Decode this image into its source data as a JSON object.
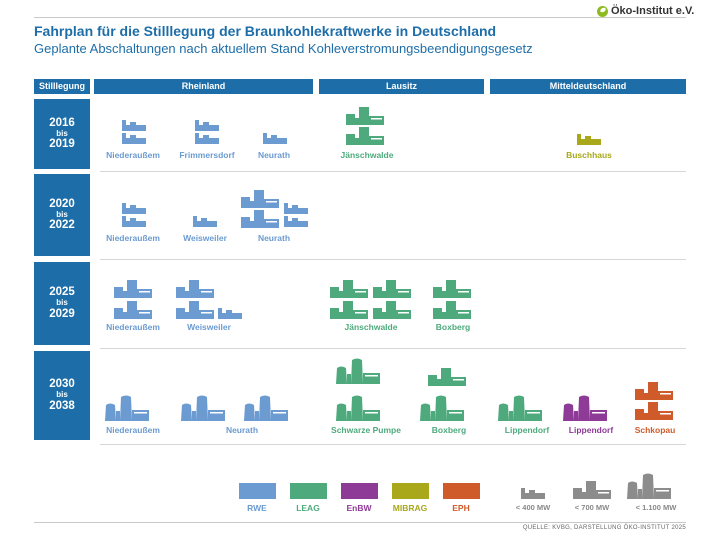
{
  "header": {
    "title": "Fahrplan für die Stilllegung der Braunkohlekraftwerke in Deutschland",
    "subtitle": "Geplante Abschaltungen nach aktuellem Stand Kohleverstromungsbeendigungsgesetz",
    "logo_text": "Öko-Institut e.V."
  },
  "columns": {
    "stilllegung": "Stilllegung",
    "rheinland": "Rheinland",
    "lausitz": "Lausitz",
    "mitteldeutschland": "Mitteldeutschland"
  },
  "periods": [
    {
      "start": "2016",
      "bis": "bis",
      "end": "2019"
    },
    {
      "start": "2020",
      "bis": "bis",
      "end": "2022"
    },
    {
      "start": "2025",
      "bis": "bis",
      "end": "2029"
    },
    {
      "start": "2030",
      "bis": "bis",
      "end": "2038"
    }
  ],
  "plants": {
    "p1_niederaussem": "Niederaußem",
    "p1_frimmersdorf": "Frimmersdorf",
    "p1_neurath": "Neurath",
    "p1_jaenschwalde": "Jänschwalde",
    "p1_buschhaus": "Buschhaus",
    "p2_niederaussem": "Niederaußem",
    "p2_weisweiler": "Weisweiler",
    "p2_neurath": "Neurath",
    "p3_niederaussem": "Niederaußem",
    "p3_weisweiler": "Weisweiler",
    "p3_jaenschwalde": "Jänschwalde",
    "p3_boxberg": "Boxberg",
    "p4_niederaussem": "Niederaußem",
    "p4_neurath": "Neurath",
    "p4_schwarzepumpe": "Schwarze Pumpe",
    "p4_boxberg": "Boxberg",
    "p4_lippendorf_leag": "Lippendorf",
    "p4_lippendorf_enbw": "Lippendorf",
    "p4_schkopau": "Schkopau"
  },
  "legend": {
    "operators": [
      {
        "name": "RWE",
        "color": "#6b9bd1"
      },
      {
        "name": "LEAG",
        "color": "#4eaa7d"
      },
      {
        "name": "EnBW",
        "color": "#8e3a97"
      },
      {
        "name": "MIBRAG",
        "color": "#a8a81a"
      },
      {
        "name": "EPH",
        "color": "#cf5b2b"
      }
    ],
    "sizes": [
      "< 400 MW",
      "< 700 MW",
      "< 1.100 MW"
    ]
  },
  "colors": {
    "RWE": "#6b9bd1",
    "LEAG": "#4eaa7d",
    "EnBW": "#8e3a97",
    "MIBRAG": "#a8a81a",
    "EPH": "#cf5b2b",
    "size_icon": "#8c8c8c",
    "header": "#1d6ea8"
  },
  "source": "QUELLE: KVBG, DARSTELLUNG ÖKO-INSTITUT 2025"
}
